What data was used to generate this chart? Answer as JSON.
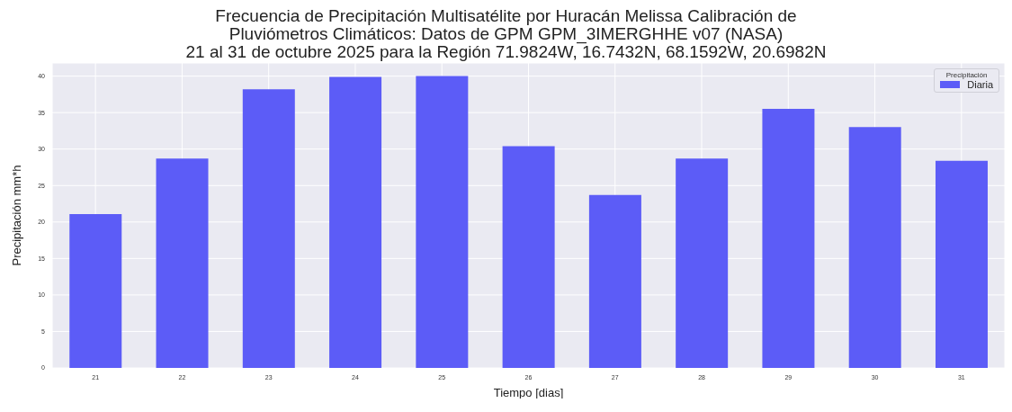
{
  "chart_data": {
    "type": "bar",
    "title": "Frecuencia de Precipitación Multisatélite por Huracán Melissa Calibración de\nPluviómetros Climáticos: Datos de GPM GPM_3IMERGHHE v07 (NASA)\n21 al 31 de octubre 2025 para la Región 71.9824W, 16.7432N, 68.1592W, 20.6982N",
    "xlabel": "Tiempo [dias]",
    "ylabel": "Precipitación mm*h",
    "legend_title": "Precipitación",
    "categories": [
      "21",
      "22",
      "23",
      "24",
      "25",
      "26",
      "27",
      "28",
      "29",
      "30",
      "31"
    ],
    "series": [
      {
        "name": "Diaria",
        "color": "#5c5cf7",
        "values": [
          21.1,
          28.7,
          38.2,
          39.9,
          40.0,
          30.4,
          23.7,
          28.7,
          35.5,
          33.0,
          28.4
        ]
      }
    ],
    "ylim": [
      0,
      41.8
    ],
    "yticks": [
      0,
      5,
      10,
      15,
      20,
      25,
      30,
      35,
      40
    ],
    "grid": true,
    "legend": "top right"
  }
}
